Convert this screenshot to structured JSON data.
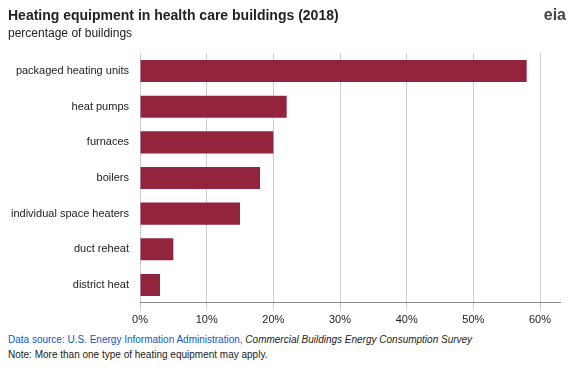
{
  "chart_data": {
    "type": "bar",
    "orientation": "horizontal",
    "title": "Heating equipment in health care buildings (2018)",
    "subtitle": "percentage of buildings",
    "categories": [
      "district heat",
      "duct reheat",
      "individual space heaters",
      "boilers",
      "furnaces",
      "heat pumps",
      "packaged heating units"
    ],
    "values": [
      3,
      5,
      15,
      18,
      20,
      22,
      58
    ],
    "color": "#92243e",
    "xlim": [
      0,
      63
    ],
    "xticks": [
      {
        "value": 0,
        "label": "0%"
      },
      {
        "value": 10,
        "label": "10%"
      },
      {
        "value": 20,
        "label": "20%"
      },
      {
        "value": 30,
        "label": "30%"
      },
      {
        "value": 40,
        "label": "40%"
      },
      {
        "value": 50,
        "label": "50%"
      },
      {
        "value": 60,
        "label": "60%"
      }
    ],
    "grid": true,
    "annotations": [
      "eia",
      "Data source: U.S. Energy Information Administration, ",
      "Commercial Buildings Energy Consumption Survey",
      "Note: More than one type of heating equipment may apply."
    ]
  }
}
